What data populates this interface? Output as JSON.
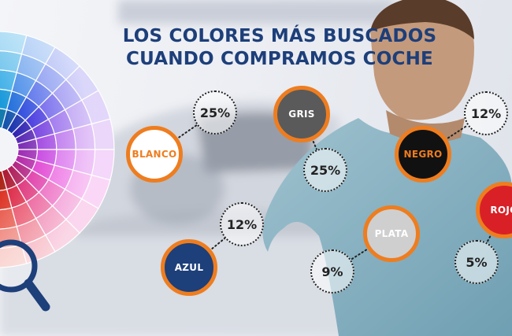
{
  "title": {
    "line1": "LOS COLORES MÁS BUSCADOS",
    "line2": "CUANDO COMPRAMOS COCHE"
  },
  "colors": {
    "title": "#1d3f7a",
    "ring": "#ee7d1f",
    "blanco": "#ffffff",
    "gris": "#5a5a5a",
    "negro": "#111111",
    "rojo": "#d92027",
    "plata": "#cfcfcf",
    "azul": "#1d3f7a"
  },
  "icons": [
    "color-wheel-graphic",
    "magnifier-icon"
  ],
  "chart_data": {
    "type": "bubble-infographic",
    "title": "LOS COLORES MÁS BUSCADOS CUANDO COMPRAMOS COCHE",
    "categories": [
      "BLANCO",
      "GRIS",
      "NEGRO",
      "ROJO",
      "PLATA",
      "AZUL"
    ],
    "values": [
      25,
      25,
      12,
      5,
      9,
      12
    ],
    "labels": [
      "25%",
      "25%",
      "12%",
      "5%",
      "9%",
      "12%"
    ],
    "unit": "%"
  }
}
